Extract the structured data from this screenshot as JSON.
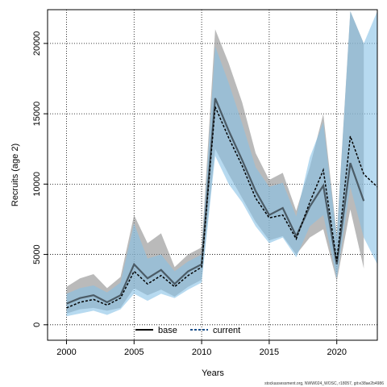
{
  "chart_data": {
    "type": "line",
    "title": "",
    "xlabel": "Years",
    "ylabel": "Recruits (age 2)",
    "xlim": [
      1998.6,
      2023
    ],
    "ylim": [
      -1100,
      22400
    ],
    "x_ticks": [
      2000,
      2005,
      2010,
      2015,
      2020
    ],
    "y_ticks": [
      0,
      5000,
      10000,
      15000,
      20000
    ],
    "grid": true,
    "legend_placement": "bottom-center",
    "x": [
      2000,
      2001,
      2002,
      2003,
      2004,
      2005,
      2006,
      2007,
      2008,
      2009,
      2010,
      2011,
      2012,
      2013,
      2014,
      2015,
      2016,
      2017,
      2018,
      2019,
      2020,
      2021,
      2022,
      2023
    ],
    "series": [
      {
        "name": "base",
        "color": "#555555",
        "band_color": "#8c8c8c",
        "values": [
          1500,
          1900,
          2100,
          1600,
          2100,
          4300,
          3300,
          3900,
          2900,
          3800,
          4300,
          16100,
          13800,
          11700,
          9500,
          7800,
          8300,
          6300,
          8400,
          9900,
          4300,
          11500,
          8800,
          null
        ],
        "lower": [
          800,
          1100,
          1200,
          1000,
          1200,
          2600,
          2100,
          2500,
          2000,
          2700,
          3200,
          12500,
          10700,
          9000,
          7300,
          6000,
          6300,
          5000,
          6200,
          6800,
          3100,
          8200,
          4000,
          null
        ],
        "upper": [
          2700,
          3300,
          3600,
          2600,
          3400,
          7800,
          5800,
          6500,
          4100,
          5000,
          5500,
          21000,
          18600,
          15800,
          12200,
          10300,
          10800,
          8100,
          11200,
          15000,
          6400,
          22300,
          20000,
          null
        ]
      },
      {
        "name": "current",
        "color": "#1a4f8a",
        "band_color": "#87c1e6",
        "values": [
          1200,
          1600,
          1800,
          1400,
          1900,
          3800,
          2900,
          3500,
          2700,
          3500,
          4100,
          15500,
          13300,
          11300,
          9000,
          7600,
          7800,
          6100,
          8700,
          11000,
          4500,
          13400,
          10700,
          9800
        ],
        "lower": [
          600,
          800,
          1000,
          700,
          1100,
          2200,
          1700,
          2200,
          1900,
          2500,
          3000,
          12000,
          10000,
          8700,
          7000,
          5800,
          6200,
          4800,
          7000,
          7800,
          3300,
          9800,
          6200,
          4300
        ],
        "upper": [
          2200,
          2600,
          2800,
          2300,
          3000,
          7200,
          4700,
          5000,
          3800,
          4500,
          5000,
          19800,
          17200,
          14300,
          11200,
          9800,
          10100,
          7700,
          11900,
          14400,
          6200,
          22300,
          20000,
          22300
        ]
      }
    ]
  },
  "footer": "stockassessment.org, NWW024_WOSC, r18057, git:e38ae2b4986"
}
